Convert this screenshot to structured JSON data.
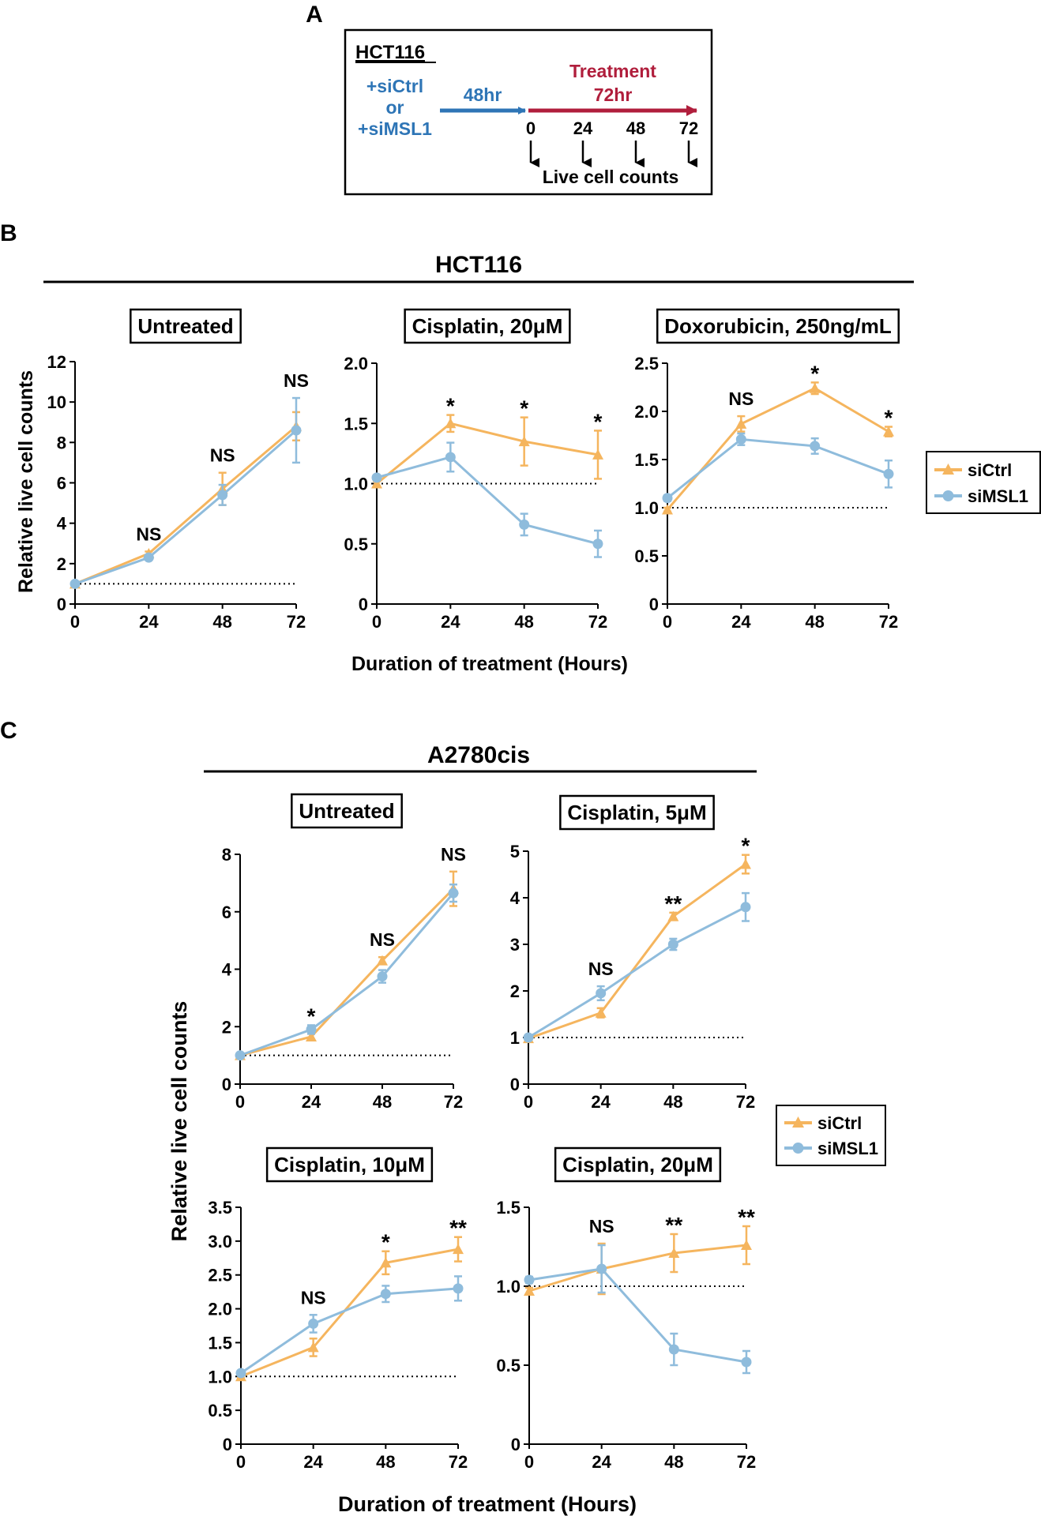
{
  "colors": {
    "siCtrl": "#F5B55E",
    "siMSL1": "#8FBCDC",
    "black": "#000000",
    "arrow_blue": "#2E75B6",
    "arrow_red": "#B01E3C"
  },
  "panel_a": {
    "letter": "A",
    "cell_line": "HCT116",
    "sirna_line1": "+siCtrl",
    "sirna_line2": "or",
    "sirna_line3": "+siMSL1",
    "pre_time": "48hr",
    "treatment_label": "Treatment",
    "treatment_time": "72hr",
    "timepoints": [
      "0",
      "24",
      "48",
      "72"
    ],
    "counts_label": "Live cell counts"
  },
  "panel_b": {
    "letter": "B",
    "title": "HCT116",
    "xlabel": "Duration of treatment (Hours)",
    "ylabel": "Relative live cell counts"
  },
  "panel_c": {
    "letter": "C",
    "title": "A2780cis",
    "xlabel": "Duration of treatment (Hours)",
    "ylabel": "Relative live cell counts"
  },
  "legend": {
    "items": [
      "siCtrl",
      "siMSL1"
    ]
  },
  "chart_data": [
    {
      "type": "line",
      "panel": "B",
      "title": "Untreated",
      "x": [
        0,
        24,
        48,
        72
      ],
      "ylim": [
        0,
        12
      ],
      "yticks": [
        "0",
        "2",
        "4",
        "6",
        "8",
        "10",
        "12"
      ],
      "xticks": [
        "0",
        "24",
        "48",
        "72"
      ],
      "series": [
        {
          "name": "siCtrl",
          "values": [
            1.0,
            2.5,
            5.7,
            8.8
          ],
          "err": [
            0.05,
            0.1,
            0.8,
            0.7
          ]
        },
        {
          "name": "siMSL1",
          "values": [
            1.0,
            2.3,
            5.4,
            8.6
          ],
          "err": [
            0.05,
            0.1,
            0.5,
            1.6
          ]
        }
      ],
      "annotations": [
        "",
        "NS",
        "NS",
        "NS"
      ],
      "reference_y": 1.0
    },
    {
      "type": "line",
      "panel": "B",
      "title": "Cisplatin, 20μM",
      "x": [
        0,
        24,
        48,
        72
      ],
      "ylim": [
        0,
        2
      ],
      "yticks": [
        "0",
        "0.5",
        "1.0",
        "1.5",
        "2.0"
      ],
      "xticks": [
        "0",
        "24",
        "48",
        "72"
      ],
      "series": [
        {
          "name": "siCtrl",
          "values": [
            1.0,
            1.5,
            1.35,
            1.24
          ],
          "err": [
            0.02,
            0.07,
            0.2,
            0.2
          ]
        },
        {
          "name": "siMSL1",
          "values": [
            1.05,
            1.22,
            0.66,
            0.5
          ],
          "err": [
            0.02,
            0.12,
            0.09,
            0.11
          ]
        }
      ],
      "annotations": [
        "",
        "*",
        "*",
        "*"
      ],
      "reference_y": 1.0
    },
    {
      "type": "line",
      "panel": "B",
      "title": "Doxorubicin, 250ng/mL",
      "x": [
        0,
        24,
        48,
        72
      ],
      "ylim": [
        0,
        2.5
      ],
      "yticks": [
        "0",
        "0.5",
        "1.0",
        "1.5",
        "2.0",
        "2.5"
      ],
      "xticks": [
        "0",
        "24",
        "48",
        "72"
      ],
      "series": [
        {
          "name": "siCtrl",
          "values": [
            0.98,
            1.87,
            2.24,
            1.79
          ],
          "err": [
            0.02,
            0.08,
            0.06,
            0.05
          ]
        },
        {
          "name": "siMSL1",
          "values": [
            1.1,
            1.71,
            1.64,
            1.35
          ],
          "err": [
            0.03,
            0.06,
            0.08,
            0.14
          ]
        }
      ],
      "annotations": [
        "",
        "NS",
        "*",
        "*"
      ],
      "reference_y": 1.0
    },
    {
      "type": "line",
      "panel": "C",
      "title": "Untreated",
      "x": [
        0,
        24,
        48,
        72
      ],
      "ylim": [
        0,
        8
      ],
      "yticks": [
        "0",
        "2",
        "4",
        "6",
        "8"
      ],
      "xticks": [
        "0",
        "24",
        "48",
        "72"
      ],
      "series": [
        {
          "name": "siCtrl",
          "values": [
            1.0,
            1.65,
            4.3,
            6.8
          ],
          "err": [
            0.05,
            0.1,
            0.12,
            0.6
          ]
        },
        {
          "name": "siMSL1",
          "values": [
            1.0,
            1.9,
            3.75,
            6.65
          ],
          "err": [
            0.05,
            0.15,
            0.22,
            0.3
          ]
        }
      ],
      "annotations": [
        "",
        "*",
        "NS",
        "NS"
      ],
      "reference_y": 1.0
    },
    {
      "type": "line",
      "panel": "C",
      "title": "Cisplatin, 5μM",
      "x": [
        0,
        24,
        48,
        72
      ],
      "ylim": [
        0,
        5
      ],
      "yticks": [
        "0",
        "1",
        "2",
        "3",
        "4",
        "5"
      ],
      "xticks": [
        "0",
        "24",
        "48",
        "72"
      ],
      "series": [
        {
          "name": "siCtrl",
          "values": [
            0.98,
            1.53,
            3.6,
            4.72
          ],
          "err": [
            0.03,
            0.1,
            0.08,
            0.2
          ]
        },
        {
          "name": "siMSL1",
          "values": [
            1.0,
            1.95,
            3.0,
            3.8
          ],
          "err": [
            0.03,
            0.15,
            0.12,
            0.3
          ]
        }
      ],
      "annotations": [
        "",
        "NS",
        "**",
        "*"
      ],
      "reference_y": 1.0
    },
    {
      "type": "line",
      "panel": "C",
      "title": "Cisplatin, 10μM",
      "x": [
        0,
        24,
        48,
        72
      ],
      "ylim": [
        0,
        3.5
      ],
      "yticks": [
        "0",
        "0.5",
        "1.0",
        "1.5",
        "2.0",
        "2.5",
        "3.0",
        "3.5"
      ],
      "xticks": [
        "0",
        "24",
        "48",
        "72"
      ],
      "series": [
        {
          "name": "siCtrl",
          "values": [
            1.0,
            1.43,
            2.68,
            2.88
          ],
          "err": [
            0.02,
            0.13,
            0.17,
            0.18
          ]
        },
        {
          "name": "siMSL1",
          "values": [
            1.05,
            1.78,
            2.22,
            2.3
          ],
          "err": [
            0.02,
            0.13,
            0.12,
            0.18
          ]
        }
      ],
      "annotations": [
        "",
        "NS",
        "*",
        "**"
      ],
      "reference_y": 1.0
    },
    {
      "type": "line",
      "panel": "C",
      "title": "Cisplatin, 20μM",
      "x": [
        0,
        24,
        48,
        72
      ],
      "ylim": [
        0,
        1.5
      ],
      "yticks": [
        "0",
        "0.5",
        "1.0",
        "1.5"
      ],
      "xticks": [
        "0",
        "24",
        "48",
        "72"
      ],
      "series": [
        {
          "name": "siCtrl",
          "values": [
            0.97,
            1.11,
            1.21,
            1.26
          ],
          "err": [
            0.02,
            0.16,
            0.12,
            0.12
          ]
        },
        {
          "name": "siMSL1",
          "values": [
            1.04,
            1.11,
            0.6,
            0.52
          ],
          "err": [
            0.02,
            0.15,
            0.1,
            0.07
          ]
        }
      ],
      "annotations": [
        "",
        "NS",
        "**",
        "**"
      ],
      "reference_y": 1.0
    }
  ]
}
